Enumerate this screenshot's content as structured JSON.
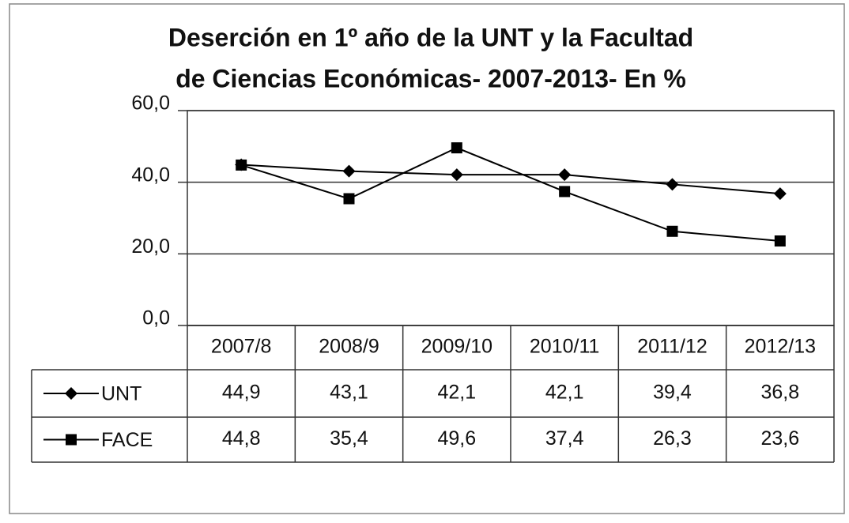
{
  "chart_data": {
    "type": "line",
    "title": [
      "Deserción en 1º año de la UNT y la Facultad",
      "de Ciencias Económicas- 2007-2013- En %"
    ],
    "categories": [
      "2007/8",
      "2008/9",
      "2009/10",
      "2010/11",
      "2011/12",
      "2012/13"
    ],
    "series": [
      {
        "name": "UNT",
        "color": "#000000",
        "marker": "diamond",
        "values": [
          44.9,
          43.1,
          42.1,
          42.1,
          39.4,
          36.8
        ],
        "value_labels": [
          "44,9",
          "43,1",
          "42,1",
          "42,1",
          "39,4",
          "36,8"
        ]
      },
      {
        "name": "FACE",
        "color": "#000000",
        "marker": "square",
        "values": [
          44.8,
          35.4,
          49.6,
          37.4,
          26.3,
          23.6
        ],
        "value_labels": [
          "44,8",
          "35,4",
          "49,6",
          "37,4",
          "26,3",
          "23,6"
        ]
      }
    ],
    "ylim": [
      0,
      60
    ],
    "yticks": [
      {
        "value": 0,
        "label": "0,0"
      },
      {
        "value": 20,
        "label": "20,0"
      },
      {
        "value": 40,
        "label": "40,0"
      },
      {
        "value": 60,
        "label": "60,0"
      }
    ],
    "grid": true,
    "data_table": true
  }
}
